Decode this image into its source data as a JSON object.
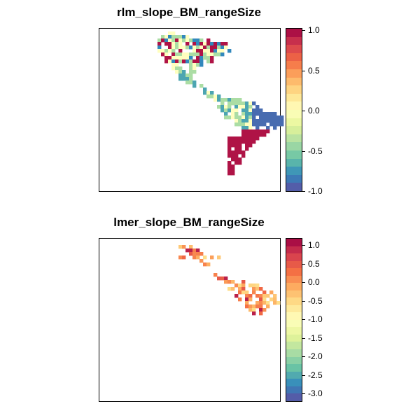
{
  "panels": [
    {
      "title": "rlm_slope_BM_rangeSize",
      "legend": {
        "ticks": [
          "1.0",
          "0.5",
          "0.0",
          "-0.5",
          "-1.0"
        ],
        "tick_values": [
          1.0,
          0.5,
          0.0,
          -0.5,
          -1.0
        ],
        "range": [
          -1.0,
          1.0
        ]
      }
    },
    {
      "title": "lmer_slope_BM_rangeSize",
      "legend": {
        "ticks": [
          "1.0",
          "0.5",
          "0.0",
          "-0.5",
          "-1.0",
          "-1.5",
          "-2.0",
          "-2.5",
          "-3.0"
        ],
        "tick_values": [
          1.0,
          0.5,
          0.0,
          -0.5,
          -1.0,
          -1.5,
          -2.0,
          -2.5,
          -3.0
        ],
        "range": [
          -3.2,
          1.2
        ]
      }
    }
  ],
  "colors": {
    "palette": [
      "#5E4FA2",
      "#3288BD",
      "#66C2A5",
      "#ABDDA4",
      "#E6F598",
      "#FFFFBF",
      "#FEE08B",
      "#FDAE61",
      "#F46D43",
      "#D53E4F",
      "#9E0142"
    ]
  }
}
